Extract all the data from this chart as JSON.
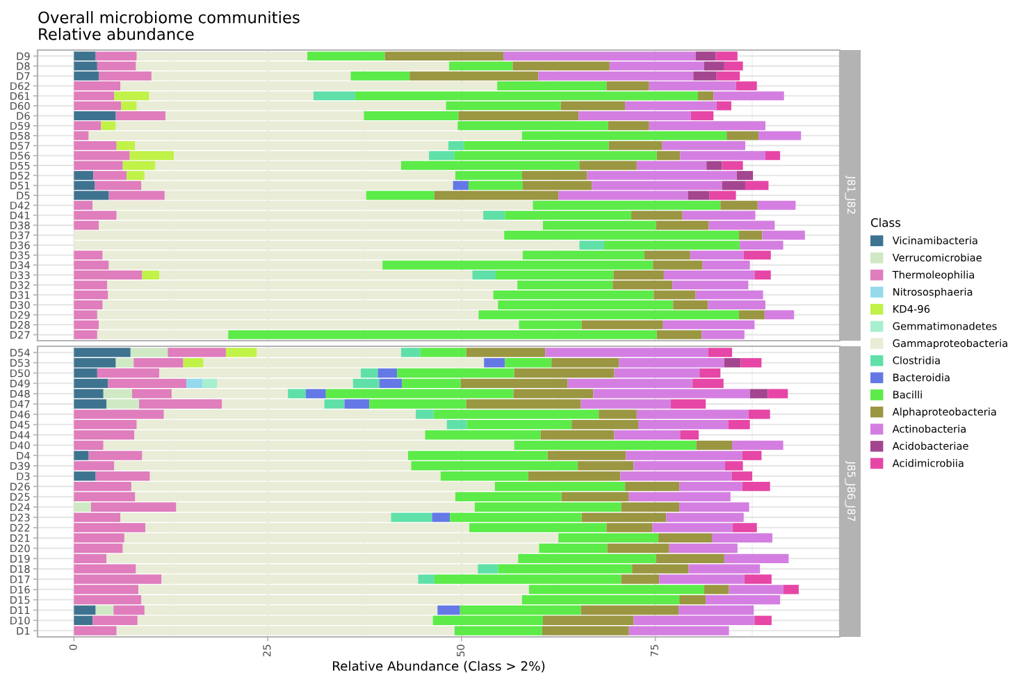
{
  "chart_data": [
    {
      "type": "bar",
      "orientation": "horizontal",
      "stacked": true,
      "title": "Overall microbiome communities",
      "subtitle": "Relative abundance",
      "legend": "right",
      "legend_title": "Class",
      "tick_labels": "y",
      "grid": true,
      "annotations": [
        "J81_J82"
      ],
      "xlim": [
        -4.7,
        98.8
      ],
      "xticks": [
        0,
        {
          "value": 12.5,
          "label": null
        },
        25,
        {
          "value": 37.5,
          "label": null
        },
        50,
        {
          "value": 62.5,
          "label": null
        },
        75,
        {
          "value": 87.5,
          "label": null
        }
      ],
      "categories": [
        "D9",
        "D8",
        "D7",
        "D62",
        "D61",
        "D60",
        "D6",
        "D59",
        "D58",
        "D57",
        "D56",
        "D55",
        "D52",
        "D51",
        "D5",
        "D42",
        "D41",
        "D38",
        "D37",
        "D36",
        "D35",
        "D34",
        "D33",
        "D32",
        "D31",
        "D30",
        "D29",
        "D28",
        "D27"
      ],
      "series": [
        {
          "name": "Vicinamibacteria",
          "color": "#3e7390",
          "values": [
            2.8,
            3.0,
            3.2,
            null,
            null,
            null,
            5.4,
            null,
            null,
            null,
            null,
            null,
            2.5,
            2.7,
            4.5,
            null,
            null,
            null,
            null,
            null,
            null,
            null,
            null,
            null,
            null,
            null,
            null,
            null,
            null
          ]
        },
        {
          "name": "Verrucomicrobiae",
          "color": "#cfe9c4",
          "values": [
            null,
            null,
            null,
            null,
            null,
            null,
            null,
            null,
            null,
            null,
            null,
            null,
            null,
            null,
            null,
            null,
            null,
            null,
            null,
            null,
            null,
            null,
            null,
            null,
            null,
            null,
            null,
            null,
            null
          ]
        },
        {
          "name": "Thermoleophilia",
          "color": "#df7dbd",
          "values": [
            5.3,
            5.0,
            6.8,
            6.0,
            5.2,
            6.1,
            6.4,
            3.5,
            1.9,
            5.5,
            7.2,
            6.3,
            4.3,
            6.0,
            7.2,
            2.4,
            5.5,
            3.2,
            null,
            null,
            3.7,
            4.5,
            8.8,
            4.3,
            4.4,
            3.7,
            3.0,
            3.2,
            3.0
          ]
        },
        {
          "name": "Nitrososphaeria",
          "color": "#94d9ec",
          "values": [
            null,
            null,
            null,
            null,
            null,
            null,
            null,
            null,
            null,
            null,
            null,
            null,
            null,
            null,
            null,
            null,
            null,
            null,
            null,
            null,
            null,
            null,
            null,
            null,
            null,
            null,
            null,
            null,
            null
          ]
        },
        {
          "name": "KD4-96",
          "color": "#c0f248",
          "values": [
            null,
            null,
            null,
            null,
            4.5,
            2.0,
            null,
            1.9,
            null,
            2.4,
            5.7,
            4.2,
            2.3,
            null,
            null,
            null,
            null,
            null,
            null,
            null,
            null,
            null,
            2.2,
            null,
            null,
            null,
            null,
            null,
            null
          ]
        },
        {
          "name": "Gemmatimonadetes",
          "color": "#a6efcf",
          "values": [
            null,
            null,
            null,
            null,
            null,
            null,
            null,
            null,
            null,
            null,
            null,
            null,
            null,
            null,
            null,
            null,
            null,
            null,
            null,
            null,
            null,
            null,
            null,
            null,
            null,
            null,
            null,
            null,
            null
          ]
        },
        {
          "name": "Gammaproteobacteria",
          "color": "#e9ecd6",
          "values": [
            22.0,
            40.4,
            25.7,
            48.6,
            21.2,
            39.9,
            25.6,
            44.1,
            55.9,
            40.4,
            32.9,
            31.7,
            40.1,
            40.2,
            26.0,
            56.8,
            47.3,
            57.3,
            55.5,
            65.2,
            54.2,
            35.3,
            40.4,
            52.9,
            49.7,
            51.0,
            49.2,
            54.2,
            16.9
          ]
        },
        {
          "name": "Clostridia",
          "color": "#5fe0a8",
          "values": [
            null,
            null,
            null,
            null,
            5.4,
            null,
            null,
            null,
            null,
            2.0,
            3.3,
            null,
            null,
            null,
            null,
            null,
            2.8,
            null,
            null,
            3.2,
            null,
            null,
            3.0,
            null,
            null,
            null,
            null,
            null,
            null
          ]
        },
        {
          "name": "Bacteroidia",
          "color": "#6479e6",
          "values": [
            null,
            null,
            null,
            null,
            null,
            null,
            null,
            null,
            null,
            null,
            null,
            null,
            null,
            2.0,
            null,
            null,
            null,
            null,
            null,
            null,
            null,
            null,
            null,
            null,
            null,
            null,
            null,
            null,
            null
          ]
        },
        {
          "name": "Bacilli",
          "color": "#5ceb48",
          "values": [
            10.0,
            8.2,
            7.6,
            14.1,
            44.2,
            14.8,
            12.2,
            19.4,
            26.4,
            18.7,
            26.1,
            23.0,
            8.6,
            7.0,
            8.8,
            24.2,
            16.3,
            14.6,
            30.3,
            17.5,
            15.7,
            34.9,
            15.2,
            12.3,
            20.7,
            22.6,
            33.6,
            8.1,
            55.3
          ]
        },
        {
          "name": "Alphaproteobacteria",
          "color": "#9b9642",
          "values": [
            15.3,
            12.5,
            16.6,
            5.5,
            2.0,
            8.3,
            15.5,
            5.3,
            4.1,
            6.9,
            3.0,
            7.4,
            8.4,
            8.9,
            16.0,
            4.8,
            6.6,
            6.8,
            3.0,
            null,
            5.9,
            6.4,
            6.5,
            7.7,
            5.4,
            4.5,
            3.3,
            10.5,
            5.8
          ]
        },
        {
          "name": "Actinobacteria",
          "color": "#d47ee2",
          "values": [
            24.8,
            12.2,
            20.0,
            11.2,
            9.1,
            11.8,
            14.5,
            15.0,
            5.5,
            10.7,
            11.0,
            9.0,
            19.3,
            16.8,
            16.7,
            4.9,
            9.4,
            8.5,
            5.5,
            5.6,
            6.9,
            6.1,
            11.7,
            9.8,
            8.7,
            7.4,
            3.8,
            11.8,
            5.5
          ]
        },
        {
          "name": "Acidobacteriae",
          "color": "#a3468f",
          "values": [
            2.6,
            2.6,
            3.0,
            null,
            null,
            null,
            null,
            null,
            null,
            null,
            null,
            2.0,
            2.1,
            3.0,
            2.8,
            null,
            null,
            null,
            null,
            null,
            null,
            null,
            null,
            null,
            null,
            null,
            null,
            null,
            null
          ]
        },
        {
          "name": "Acidimicrobiia",
          "color": "#e646a6",
          "values": [
            2.8,
            2.4,
            3.0,
            2.7,
            null,
            1.9,
            2.9,
            null,
            null,
            null,
            1.9,
            2.7,
            null,
            3.0,
            3.4,
            null,
            null,
            null,
            null,
            null,
            3.5,
            null,
            2.1,
            null,
            null,
            null,
            null,
            null,
            null
          ]
        }
      ]
    },
    {
      "type": "bar",
      "orientation": "horizontal",
      "stacked": true,
      "xlabel": "Relative Abundance (Class > 2%)",
      "grid": true,
      "annotations": [
        "J85_J86_J87"
      ],
      "xlim": [
        -4.7,
        98.8
      ],
      "xticks": [
        0,
        {
          "value": 12.5,
          "label": null
        },
        25,
        {
          "value": 37.5,
          "label": null
        },
        50,
        {
          "value": 62.5,
          "label": null
        },
        75,
        {
          "value": 87.5,
          "label": null
        }
      ],
      "categories": [
        "D54",
        "D53",
        "D50",
        "D49",
        "D48",
        "D47",
        "D46",
        "D45",
        "D44",
        "D40",
        "D4",
        "D39",
        "D3",
        "D26",
        "D25",
        "D24",
        "D23",
        "D22",
        "D21",
        "D20",
        "D19",
        "D18",
        "D17",
        "D16",
        "D15",
        "D11",
        "D10",
        "D1"
      ],
      "series": [
        {
          "color": "#3e7390",
          "values": [
            7.3,
            5.4,
            3.0,
            4.4,
            3.8,
            4.2,
            null,
            null,
            null,
            null,
            1.9,
            null,
            2.8,
            null,
            null,
            null,
            null,
            null,
            null,
            null,
            null,
            null,
            null,
            null,
            null,
            2.8,
            2.4,
            null
          ]
        },
        {
          "color": "#cfe9c4",
          "values": [
            4.8,
            2.3,
            null,
            null,
            3.7,
            4.2,
            null,
            null,
            null,
            null,
            null,
            null,
            null,
            null,
            null,
            2.2,
            null,
            null,
            null,
            null,
            null,
            null,
            null,
            null,
            null,
            2.3,
            null,
            null
          ]
        },
        {
          "color": "#df7dbd",
          "values": [
            7.5,
            6.4,
            8.0,
            10.1,
            5.1,
            10.7,
            11.6,
            8.1,
            7.8,
            3.8,
            6.9,
            5.2,
            7.0,
            7.4,
            7.9,
            11.0,
            6.0,
            9.2,
            6.5,
            6.3,
            4.2,
            8.0,
            11.3,
            8.3,
            8.7,
            4.0,
            5.8,
            5.5
          ]
        },
        {
          "color": "#94d9ec",
          "values": [
            null,
            null,
            null,
            2.1,
            null,
            null,
            null,
            null,
            null,
            null,
            null,
            null,
            null,
            null,
            null,
            null,
            null,
            null,
            null,
            null,
            null,
            null,
            null,
            null,
            null,
            null,
            null,
            null
          ]
        },
        {
          "color": "#c0f248",
          "values": [
            4.0,
            2.6,
            null,
            null,
            null,
            null,
            null,
            null,
            null,
            null,
            null,
            null,
            null,
            null,
            null,
            null,
            null,
            null,
            null,
            null,
            null,
            null,
            null,
            null,
            null,
            null,
            null,
            null
          ]
        },
        {
          "color": "#a6efcf",
          "values": [
            null,
            null,
            null,
            1.9,
            null,
            null,
            null,
            null,
            null,
            null,
            null,
            null,
            null,
            null,
            null,
            null,
            null,
            null,
            null,
            null,
            null,
            null,
            null,
            null,
            null,
            null,
            null,
            null
          ]
        },
        {
          "color": "#e9ecd6",
          "values": [
            18.6,
            36.2,
            26.0,
            17.5,
            15.0,
            13.2,
            32.5,
            40.0,
            37.5,
            53.0,
            34.3,
            38.3,
            37.5,
            46.9,
            41.3,
            38.5,
            34.9,
            41.8,
            56.0,
            53.7,
            53.1,
            44.1,
            33.1,
            50.4,
            49.1,
            37.8,
            38.1,
            43.6
          ]
        },
        {
          "color": "#5fe0a8",
          "values": [
            2.5,
            null,
            2.2,
            3.4,
            2.3,
            2.6,
            2.3,
            2.6,
            null,
            null,
            null,
            null,
            null,
            null,
            null,
            null,
            5.3,
            null,
            null,
            null,
            null,
            2.6,
            2.1,
            null,
            null,
            null,
            null,
            null
          ]
        },
        {
          "color": "#6479e6",
          "values": [
            null,
            2.7,
            2.5,
            2.9,
            2.6,
            3.2,
            null,
            null,
            null,
            null,
            null,
            null,
            null,
            null,
            null,
            null,
            2.3,
            null,
            null,
            null,
            null,
            null,
            null,
            null,
            null,
            2.9,
            null,
            null
          ]
        },
        {
          "color": "#5ceb48",
          "values": [
            5.9,
            6.0,
            15.1,
            7.6,
            24.2,
            12.5,
            21.3,
            13.5,
            14.9,
            23.5,
            18.0,
            21.5,
            11.3,
            16.8,
            13.7,
            18.9,
            17.0,
            17.7,
            12.9,
            8.8,
            17.8,
            17.3,
            24.1,
            22.6,
            20.3,
            15.6,
            14.2,
            11.3
          ]
        },
        {
          "color": "#9b9642",
          "values": [
            10.2,
            8.7,
            12.9,
            13.8,
            10.3,
            14.8,
            4.9,
            8.6,
            9.5,
            4.6,
            10.1,
            7.2,
            11.9,
            7.0,
            8.7,
            7.5,
            10.9,
            5.9,
            6.9,
            8.0,
            8.8,
            7.3,
            4.9,
            3.2,
            3.4,
            12.6,
            11.7,
            11.2
          ]
        },
        {
          "color": "#d47ee2",
          "values": [
            21.0,
            13.6,
            11.0,
            16.1,
            20.2,
            11.6,
            14.4,
            11.6,
            8.5,
            6.6,
            15.0,
            11.8,
            14.4,
            8.1,
            13.1,
            9.0,
            10.0,
            10.4,
            7.8,
            8.8,
            8.3,
            9.2,
            11.0,
            7.0,
            9.6,
            9.7,
            15.6,
            12.9
          ]
        },
        {
          "color": "#a3468f",
          "values": [
            null,
            2.1,
            null,
            null,
            2.3,
            null,
            null,
            null,
            null,
            null,
            null,
            null,
            null,
            null,
            null,
            null,
            null,
            null,
            null,
            null,
            null,
            null,
            null,
            null,
            null,
            null,
            null,
            null
          ]
        },
        {
          "color": "#e646a6",
          "values": [
            3.1,
            2.7,
            2.7,
            4.0,
            2.6,
            4.5,
            2.8,
            2.8,
            2.4,
            null,
            2.5,
            2.3,
            2.6,
            3.6,
            null,
            null,
            null,
            3.1,
            null,
            null,
            null,
            null,
            3.5,
            2.0,
            null,
            null,
            2.2,
            null
          ]
        }
      ]
    }
  ]
}
